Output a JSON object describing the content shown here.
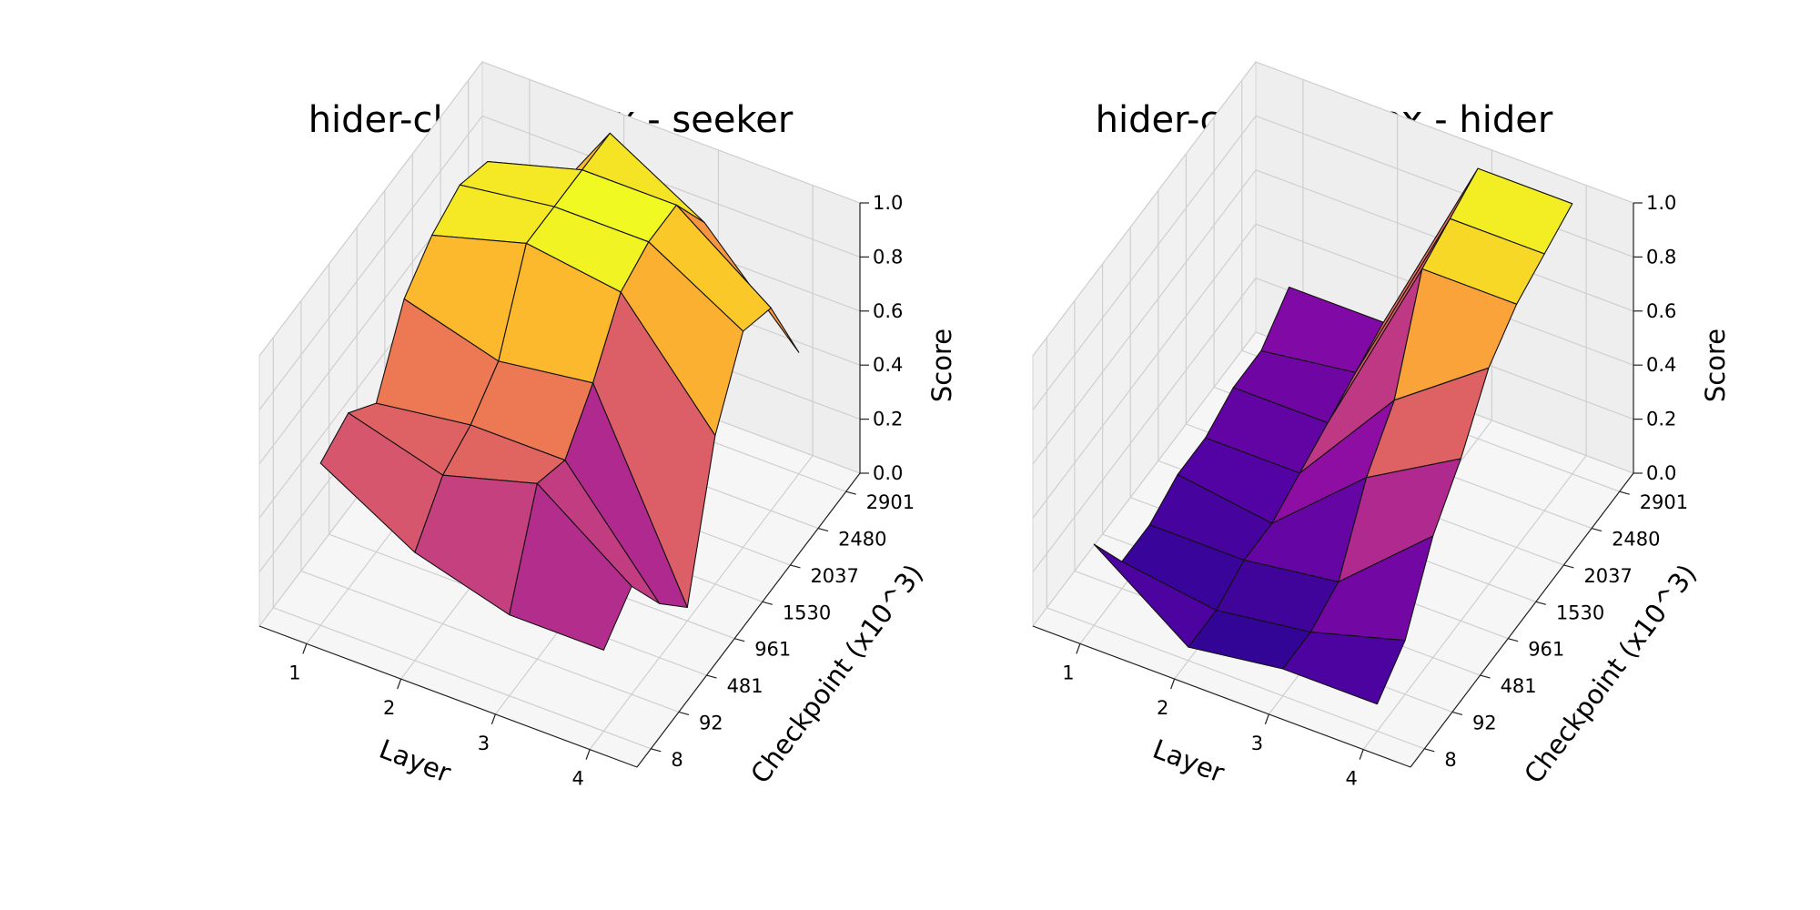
{
  "chart_data": [
    {
      "type": "surface3d",
      "title": "hider-close-to-box - seeker",
      "xlabel": "Layer",
      "ylabel": "Checkpoint (x10^3)",
      "zlabel": "Score",
      "x_ticks": [
        "1",
        "2",
        "3",
        "4"
      ],
      "y_ticks": [
        "8",
        "92",
        "481",
        "961",
        "1530",
        "2037",
        "2480",
        "2901"
      ],
      "z_ticks": [
        "0.0",
        "0.2",
        "0.4",
        "0.6",
        "0.8",
        "1.0"
      ],
      "zlim": [
        0,
        1
      ],
      "colormap": "plasma",
      "grid": true,
      "z": [
        [
          0.6,
          0.65,
          0.55,
          0.8,
          0.9,
          0.95,
          0.9,
          0.5
        ],
        [
          0.4,
          0.55,
          0.6,
          0.7,
          1.0,
          1.0,
          1.0,
          1.0
        ],
        [
          0.3,
          0.65,
          0.6,
          0.75,
          0.95,
          1.0,
          1.0,
          0.8
        ],
        [
          0.3,
          0.4,
          0.2,
          0.05,
          0.55,
          0.8,
          0.75,
          0.45
        ]
      ]
    },
    {
      "type": "surface3d",
      "title": "hider-close-to-box - hider",
      "xlabel": "Layer",
      "ylabel": "Checkpoint (x10^3)",
      "zlabel": "Score",
      "x_ticks": [
        "1",
        "2",
        "3",
        "4"
      ],
      "y_ticks": [
        "8",
        "92",
        "481",
        "961",
        "1530",
        "2037",
        "2480",
        "2901"
      ],
      "z_ticks": [
        "0.0",
        "0.2",
        "0.4",
        "0.6",
        "0.8",
        "1.0"
      ],
      "zlim": [
        0,
        1
      ],
      "colormap": "plasma",
      "grid": true,
      "z": [
        [
          0.3,
          0.1,
          0.1,
          0.15,
          0.15,
          0.2,
          0.2,
          0.3
        ],
        [
          0.05,
          0.05,
          0.1,
          0.1,
          0.15,
          0.2,
          0.25,
          0.3
        ],
        [
          0.1,
          0.1,
          0.15,
          0.4,
          0.55,
          0.9,
          0.95,
          1.0
        ],
        [
          0.1,
          0.2,
          0.45,
          0.6,
          0.8,
          0.9,
          0.95,
          1.0
        ]
      ]
    }
  ]
}
